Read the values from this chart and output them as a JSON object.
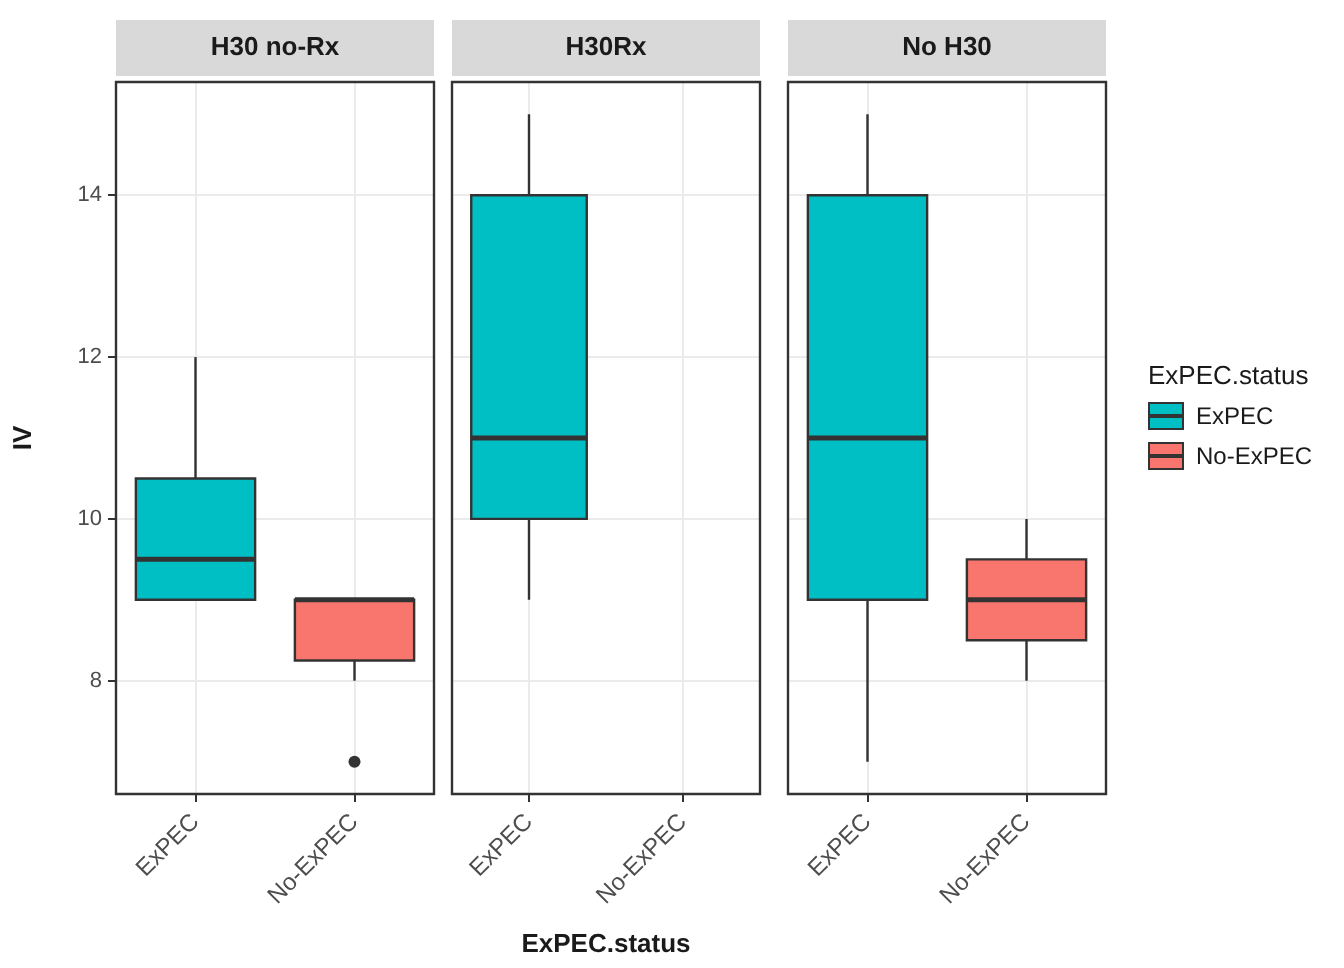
{
  "chart_data": [
    {
      "type": "box",
      "title": "H30 no-Rx",
      "ylabel": "IV",
      "categories": [
        "ExPEC",
        "No-ExPEC"
      ],
      "ylim": [
        6.6,
        15.4
      ],
      "yticks": [
        8,
        10,
        12,
        14
      ],
      "grid": true,
      "legend": "right",
      "legend_title": "ExPEC.status",
      "series": [
        {
          "name": "ExPEC",
          "color": "#00bfc4",
          "boxes": [
            {
              "low": 9,
              "q1": 9,
              "median": 9.5,
              "q3": 10.5,
              "high": 12
            },
            null
          ]
        },
        {
          "name": "No-ExPEC",
          "color": "#f8766d",
          "boxes": [
            null,
            {
              "low": 8,
              "q1": 8.25,
              "median": 9,
              "q3": 9,
              "high": 9,
              "outliers": [
                7
              ]
            }
          ]
        }
      ]
    },
    {
      "type": "box",
      "title": "H30Rx",
      "xlabel": "ExPEC.status",
      "categories": [
        "ExPEC",
        "No-ExPEC"
      ],
      "ylim": [
        6.6,
        15.4
      ],
      "yticks": [
        8,
        10,
        12,
        14
      ],
      "grid": true,
      "tick_labels": "x",
      "series": [
        {
          "color": "#00bfc4",
          "boxes": [
            {
              "low": 9,
              "q1": 10,
              "median": 11,
              "q3": 14,
              "high": 15
            },
            null
          ]
        }
      ]
    },
    {
      "type": "box",
      "title": "No H30",
      "categories": [
        "ExPEC",
        "No-ExPEC"
      ],
      "ylim": [
        6.6,
        15.4
      ],
      "yticks": [
        8,
        10,
        12,
        14
      ],
      "grid": true,
      "tick_labels": "x",
      "series": [
        {
          "color": "#00bfc4",
          "boxes": [
            {
              "low": 7,
              "q1": 9,
              "median": 11,
              "q3": 14,
              "high": 15
            },
            null
          ]
        },
        {
          "color": "#f8766d",
          "boxes": [
            null,
            {
              "low": 8,
              "q1": 8.5,
              "median": 9,
              "q3": 9.5,
              "high": 10
            }
          ]
        }
      ]
    }
  ]
}
